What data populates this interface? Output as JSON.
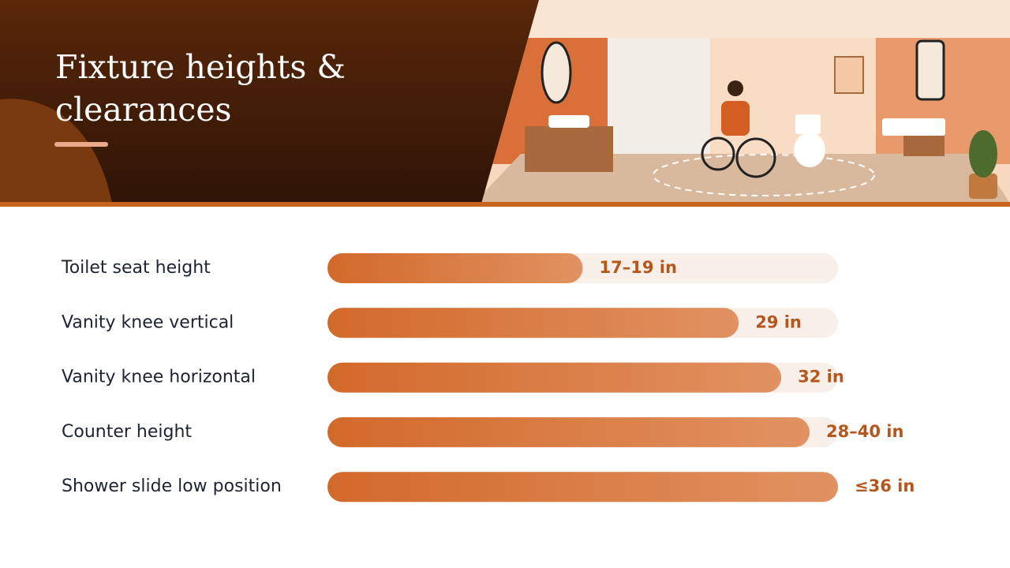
{
  "title": "Fixture heights & clearances",
  "chart_data": {
    "type": "bar",
    "orientation": "horizontal",
    "categories": [
      "Toilet seat height",
      "Vanity knee vertical",
      "Vanity knee horizontal",
      "Counter height",
      "Shower slide low position"
    ],
    "values": [
      18,
      29,
      32,
      34,
      36
    ],
    "value_labels": [
      "17–19 in",
      "29 in",
      "32 in",
      "28–40 in",
      "≤36 in"
    ],
    "color": "#d2692a",
    "xlim": [
      0,
      36
    ]
  }
}
